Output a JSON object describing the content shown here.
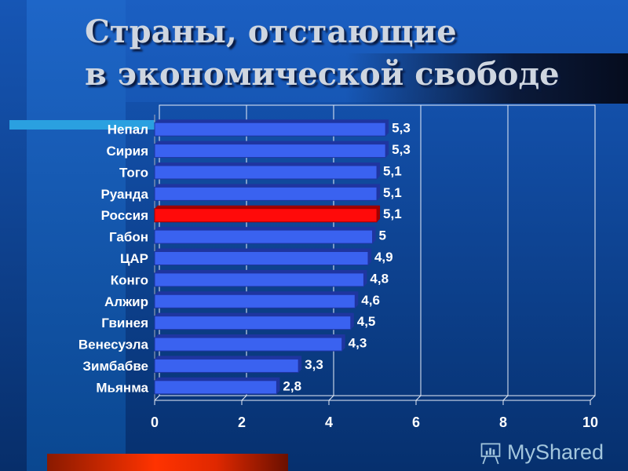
{
  "title_line1": "Страны, отстающие",
  "title_line2": "в экономической свободе",
  "chart_data": {
    "type": "bar",
    "orientation": "horizontal",
    "categories": [
      "Непал",
      "Сирия",
      "Того",
      "Руанда",
      "Россия",
      "Габон",
      "ЦАР",
      "Конго",
      "Алжир",
      "Гвинея",
      "Венесуэла",
      "Зимбабве",
      "Мьянма"
    ],
    "values": [
      5.3,
      5.3,
      5.1,
      5.1,
      5.1,
      5,
      4.9,
      4.8,
      4.6,
      4.5,
      4.3,
      3.3,
      2.8
    ],
    "value_labels": [
      "5,3",
      "5,3",
      "5,1",
      "5,1",
      "5,1",
      "5",
      "4,9",
      "4,8",
      "4,6",
      "4,5",
      "4,3",
      "3,3",
      "2,8"
    ],
    "highlight": "Россия",
    "colors": {
      "bar": "#3a62f0",
      "highlight": "#ff0a0a"
    },
    "xlim": [
      0,
      10
    ],
    "xticks": [
      "0",
      "2",
      "4",
      "6",
      "8",
      "10"
    ],
    "grid": true,
    "title": "",
    "xlabel": "",
    "ylabel": ""
  },
  "watermark": "MyShared"
}
